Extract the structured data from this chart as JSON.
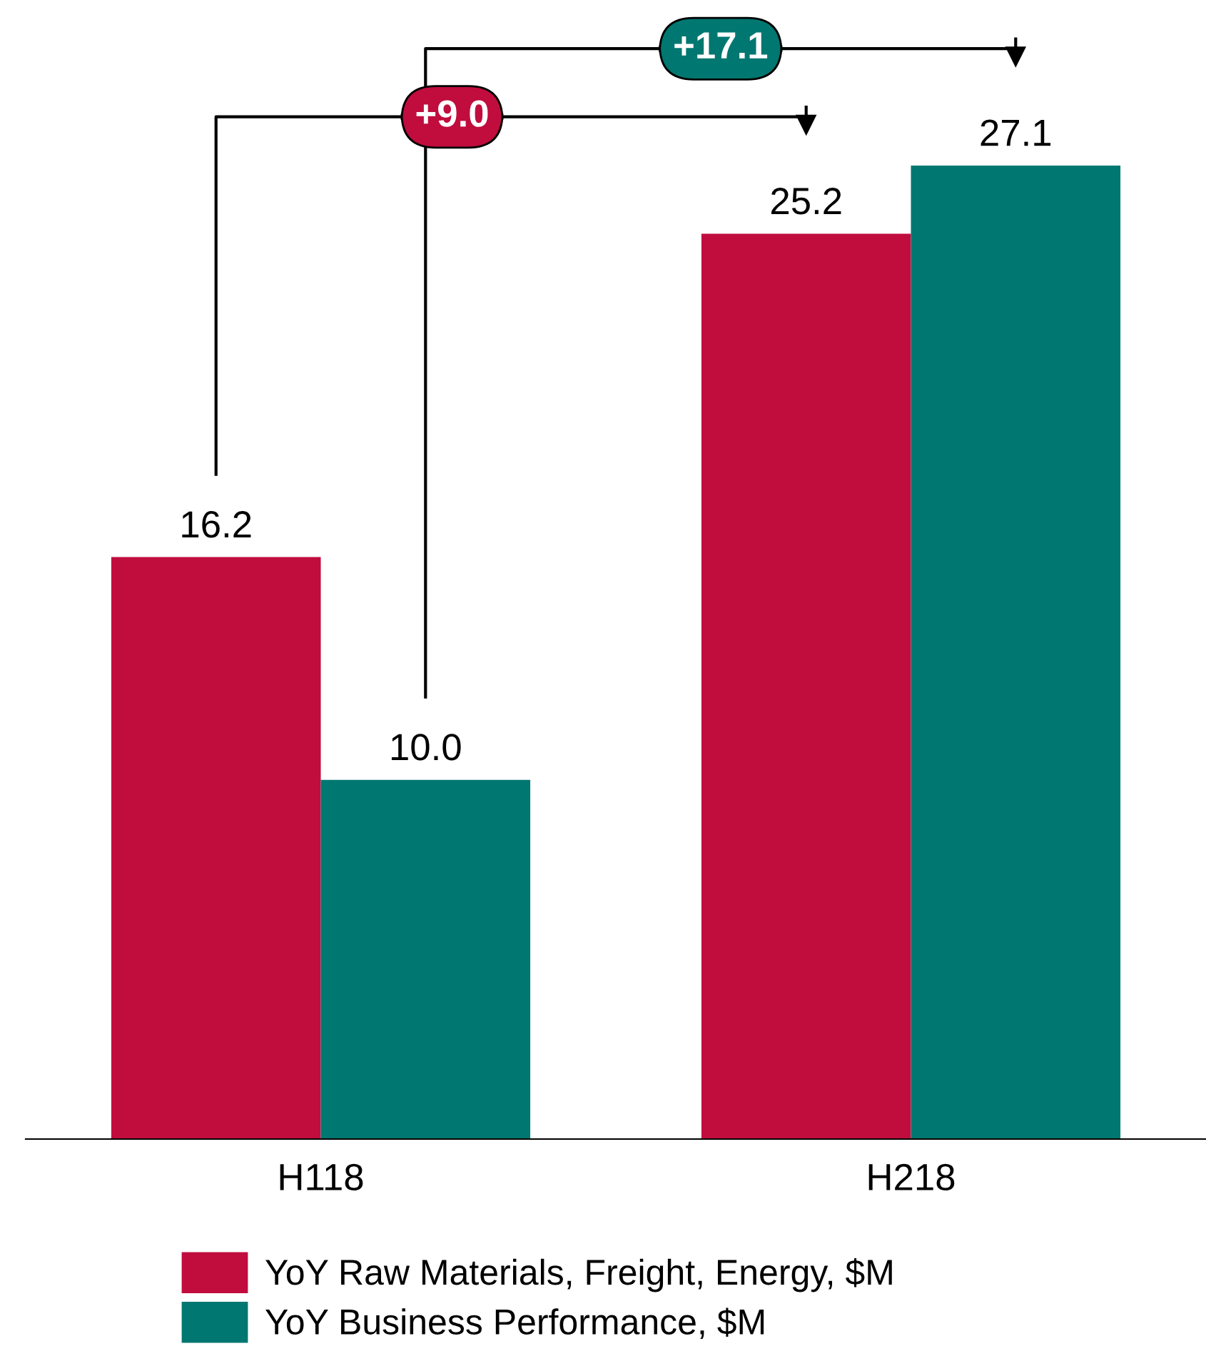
{
  "chart_data": {
    "type": "bar",
    "categories": [
      "H118",
      "H218"
    ],
    "series": [
      {
        "name": "YoY Raw Materials, Freight, Energy, $M",
        "color": "#c00d3e",
        "values": [
          16.2,
          25.2
        ],
        "value_labels": [
          "16.2",
          "25.2"
        ]
      },
      {
        "name": "YoY Business Performance, $M",
        "color": "#007770",
        "values": [
          10.0,
          27.1
        ],
        "value_labels": [
          "10.0",
          "27.1"
        ]
      }
    ],
    "legend": "bottom",
    "grid": false,
    "annotations": [
      "+9.0",
      "+17.1"
    ]
  }
}
